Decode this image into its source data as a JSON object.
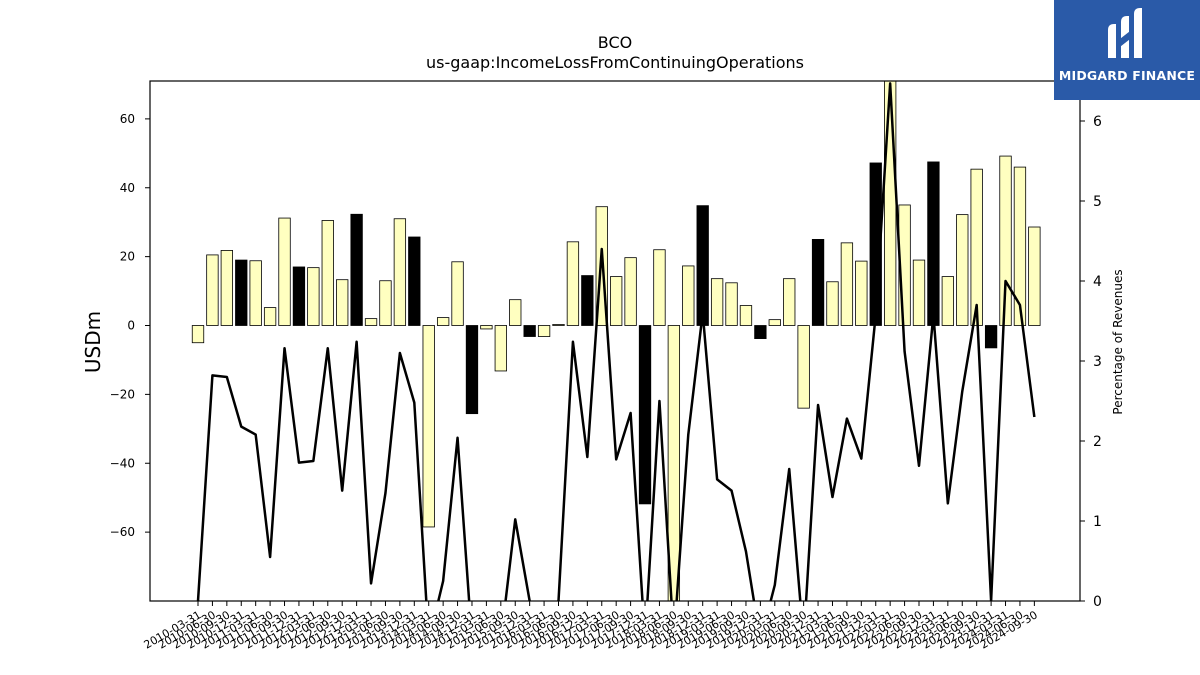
{
  "chart_data": {
    "type": "bar",
    "title": "BCO",
    "subtitle": "us-gaap:IncomeLossFromContinuingOperations",
    "ylabel": "USDm",
    "y2label": "Percentage of Revenues",
    "ylim": [
      -80,
      71
    ],
    "y2lim": [
      0,
      6.5
    ],
    "yticks": [
      -60,
      -40,
      -20,
      0,
      20,
      40,
      60
    ],
    "y2ticks": [
      0,
      1,
      2,
      3,
      4,
      5,
      6
    ],
    "grid": false,
    "legend": "none",
    "colors": {
      "bar_default": "#ffffc0",
      "bar_highlight": "#000000",
      "line": "#000000"
    },
    "categories": [
      "2010-03-31",
      "2010-06-30",
      "2010-09-30",
      "2010-12-31",
      "2011-03-31",
      "2011-06-30",
      "2011-09-30",
      "2011-12-31",
      "2012-03-31",
      "2012-06-30",
      "2012-09-30",
      "2012-12-31",
      "2013-03-31",
      "2013-06-30",
      "2013-09-30",
      "2013-12-31",
      "2014-03-31",
      "2014-06-30",
      "2014-09-30",
      "2014-12-31",
      "2015-03-31",
      "2015-06-30",
      "2015-09-30",
      "2015-12-31",
      "2016-03-31",
      "2016-06-30",
      "2016-09-30",
      "2016-12-31",
      "2017-03-31",
      "2017-06-30",
      "2017-09-30",
      "2017-12-31",
      "2018-03-31",
      "2018-06-30",
      "2018-09-30",
      "2018-12-31",
      "2019-03-31",
      "2019-06-30",
      "2019-09-30",
      "2019-12-31",
      "2020-03-31",
      "2020-06-30",
      "2020-09-30",
      "2020-12-31",
      "2021-03-31",
      "2021-06-30",
      "2021-09-30",
      "2021-12-31",
      "2022-03-31",
      "2022-06-30",
      "2022-09-30",
      "2022-12-31",
      "2023-03-31",
      "2023-06-30",
      "2023-09-30",
      "2023-12-31",
      "2024-03-31",
      "2024-06-30",
      "2024-09-30"
    ],
    "bar_series": {
      "name": "IncomeLossFromContinuingOperations",
      "values": [
        -5.0,
        20.5,
        21.8,
        19.0,
        18.8,
        5.2,
        31.2,
        17.0,
        16.8,
        30.5,
        13.3,
        32.3,
        2.0,
        13.0,
        31.0,
        25.7,
        -58.5,
        2.3,
        18.5,
        -25.6,
        -1.0,
        -13.2,
        7.5,
        -3.2,
        -3.2,
        0.3,
        24.3,
        14.5,
        34.5,
        14.2,
        19.7,
        -51.8,
        22.0,
        -80.0,
        17.3,
        34.8,
        13.6,
        12.4,
        5.8,
        -3.8,
        1.7,
        13.6,
        -24.0,
        25.0,
        12.7,
        24.0,
        18.7,
        47.2,
        71.0,
        35.0,
        19.0,
        47.5,
        14.2,
        32.2,
        45.4,
        -6.5,
        49.2,
        46.0,
        28.6
      ],
      "highlight": [
        false,
        false,
        false,
        true,
        false,
        false,
        false,
        true,
        false,
        false,
        false,
        true,
        false,
        false,
        false,
        true,
        false,
        false,
        false,
        true,
        false,
        false,
        false,
        true,
        false,
        false,
        false,
        true,
        false,
        false,
        false,
        true,
        false,
        false,
        false,
        true,
        false,
        false,
        false,
        true,
        false,
        false,
        false,
        true,
        false,
        false,
        false,
        true,
        false,
        false,
        false,
        true,
        false,
        false,
        false,
        true,
        false,
        false,
        false
      ]
    },
    "line_series": {
      "name": "Percentage of Revenues",
      "values": [
        0.0,
        2.82,
        2.8,
        2.18,
        2.08,
        0.55,
        3.16,
        1.73,
        1.75,
        3.16,
        1.38,
        3.24,
        0.22,
        1.35,
        3.1,
        2.48,
        -0.5,
        0.25,
        2.04,
        -0.5,
        -0.5,
        -0.5,
        1.02,
        0.0,
        -0.5,
        0.0,
        3.24,
        1.8,
        4.4,
        1.77,
        2.35,
        -0.5,
        2.5,
        -0.5,
        2.08,
        3.6,
        1.52,
        1.38,
        0.62,
        -0.5,
        0.2,
        1.65,
        -0.5,
        2.45,
        1.3,
        2.28,
        1.78,
        3.58,
        6.47,
        3.12,
        1.69,
        3.58,
        1.22,
        2.62,
        3.7,
        0.0,
        4.0,
        3.7,
        2.3
      ]
    }
  },
  "logo": {
    "text": "MIDGARD FINANCE",
    "icon": "midgard-logo-icon"
  }
}
